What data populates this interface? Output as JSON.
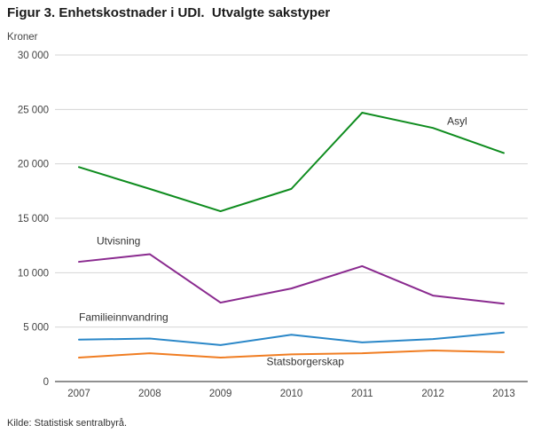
{
  "title": "Figur 3. Enhetskostnader i UDI.  Utvalgte sakstyper",
  "source": "Kilde: Statistisk sentralbyrå.",
  "chart_data": {
    "type": "line",
    "title": "Figur 3. Enhetskostnader i UDI. Utvalgte sakstyper",
    "xlabel": "",
    "ylabel": "Kroner",
    "ylim": [
      0,
      30000
    ],
    "grid": true,
    "legend": "inline-labels",
    "categories": [
      2007,
      2008,
      2009,
      2010,
      2011,
      2012,
      2013
    ],
    "yticks": [
      {
        "value": 0,
        "label": "0"
      },
      {
        "value": 5000,
        "label": "5 000"
      },
      {
        "value": 10000,
        "label": "10 000"
      },
      {
        "value": 15000,
        "label": "15 000"
      },
      {
        "value": 20000,
        "label": "20 000"
      },
      {
        "value": 25000,
        "label": "25 000"
      },
      {
        "value": 30000,
        "label": "30 000"
      }
    ],
    "series": [
      {
        "name": "Asyl",
        "color": "#0e8c1e",
        "values": [
          19700,
          17700,
          15650,
          17700,
          24700,
          23300,
          21000
        ],
        "label_pos": {
          "x": 2012.2,
          "y": 23600
        }
      },
      {
        "name": "Utvisning",
        "color": "#8a2a8f",
        "values": [
          11000,
          11700,
          7250,
          8550,
          10600,
          7900,
          7150
        ],
        "label_pos": {
          "x": 2007.25,
          "y": 12600
        }
      },
      {
        "name": "Familieinnvandring",
        "color": "#2a87c8",
        "values": [
          3850,
          3950,
          3350,
          4300,
          3600,
          3900,
          4500
        ],
        "label_pos": {
          "x": 2007.0,
          "y": 5600
        }
      },
      {
        "name": "Statsborgerskap",
        "color": "#f07d22",
        "values": [
          2200,
          2600,
          2200,
          2500,
          2600,
          2850,
          2700
        ],
        "label_pos": {
          "x": 2009.65,
          "y": 1500
        }
      }
    ]
  }
}
